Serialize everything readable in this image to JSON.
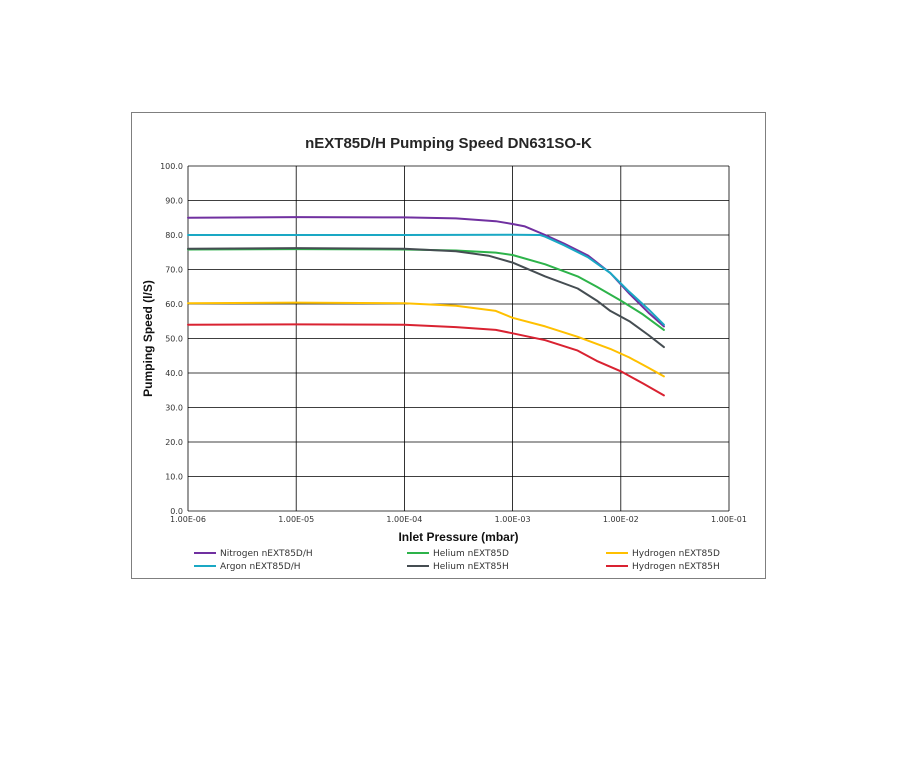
{
  "chart_data": {
    "type": "line",
    "title": "nEXT85D/H Pumping Speed DN631SO-K",
    "xlabel": "Inlet Pressure (mbar)",
    "ylabel": "Pumping Speed (l/S)",
    "x_scale": "log",
    "xlim": [
      1e-06,
      0.1
    ],
    "ylim": [
      0,
      100
    ],
    "grid": true,
    "legend_position": "bottom",
    "x_ticks": [
      "1.00E-06",
      "1.00E-05",
      "1.00E-04",
      "1.00E-03",
      "1.00E-02",
      "1.00E-01"
    ],
    "y_ticks": [
      "0.0",
      "10.0",
      "20.0",
      "30.0",
      "40.0",
      "50.0",
      "60.0",
      "70.0",
      "80.0",
      "90.0",
      "100.0"
    ],
    "series": [
      {
        "name": "Nitrogen nEXT85D/H",
        "color": "#7030a0",
        "points": [
          [
            1e-06,
            85
          ],
          [
            1e-05,
            85.2
          ],
          [
            0.0001,
            85.1
          ],
          [
            0.0003,
            84.8
          ],
          [
            0.0007,
            84
          ],
          [
            0.001,
            83.2
          ],
          [
            0.0013,
            82.5
          ],
          [
            0.002,
            80
          ],
          [
            0.003,
            77.5
          ],
          [
            0.005,
            74
          ],
          [
            0.008,
            69
          ],
          [
            0.012,
            63
          ],
          [
            0.018,
            57.5
          ],
          [
            0.025,
            53.5
          ]
        ]
      },
      {
        "name": "Argon nEXT85D/H",
        "color": "#1aa8c4",
        "points": [
          [
            1e-06,
            80
          ],
          [
            1e-05,
            80
          ],
          [
            0.0001,
            80
          ],
          [
            0.001,
            80.1
          ],
          [
            0.0018,
            80
          ],
          [
            0.002,
            79.5
          ],
          [
            0.003,
            77
          ],
          [
            0.005,
            73.5
          ],
          [
            0.008,
            69
          ],
          [
            0.012,
            63.5
          ],
          [
            0.018,
            58.5
          ],
          [
            0.025,
            54
          ]
        ]
      },
      {
        "name": "Helium nEXT85D",
        "color": "#2db34a",
        "points": [
          [
            1e-06,
            75.8
          ],
          [
            1e-05,
            75.9
          ],
          [
            0.0001,
            75.8
          ],
          [
            0.0003,
            75.5
          ],
          [
            0.0007,
            74.9
          ],
          [
            0.001,
            74.2
          ],
          [
            0.002,
            71.5
          ],
          [
            0.004,
            68
          ],
          [
            0.006,
            65
          ],
          [
            0.01,
            61
          ],
          [
            0.016,
            57
          ],
          [
            0.025,
            52.5
          ]
        ]
      },
      {
        "name": "Helium nEXT85H",
        "color": "#454d52",
        "points": [
          [
            1e-06,
            76
          ],
          [
            1e-05,
            76.2
          ],
          [
            0.0001,
            76
          ],
          [
            0.0003,
            75.3
          ],
          [
            0.0006,
            74
          ],
          [
            0.001,
            72
          ],
          [
            0.002,
            68
          ],
          [
            0.004,
            64.5
          ],
          [
            0.006,
            61
          ],
          [
            0.008,
            58
          ],
          [
            0.012,
            55
          ],
          [
            0.018,
            51
          ],
          [
            0.025,
            47.5
          ]
        ]
      },
      {
        "name": "Hydrogen nEXT85D",
        "color": "#ffc000",
        "points": [
          [
            1e-06,
            60.2
          ],
          [
            1e-05,
            60.4
          ],
          [
            0.0001,
            60.2
          ],
          [
            0.0003,
            59.5
          ],
          [
            0.0007,
            58
          ],
          [
            0.001,
            56
          ],
          [
            0.002,
            53.5
          ],
          [
            0.004,
            50.5
          ],
          [
            0.008,
            47
          ],
          [
            0.012,
            44.5
          ],
          [
            0.018,
            41.5
          ],
          [
            0.025,
            39
          ]
        ]
      },
      {
        "name": "Hydrogen nEXT85H",
        "color": "#d92231",
        "points": [
          [
            1e-06,
            54
          ],
          [
            1e-05,
            54.1
          ],
          [
            0.0001,
            54
          ],
          [
            0.0003,
            53.3
          ],
          [
            0.0007,
            52.5
          ],
          [
            0.001,
            51.5
          ],
          [
            0.002,
            49.5
          ],
          [
            0.004,
            46.5
          ],
          [
            0.006,
            43.5
          ],
          [
            0.01,
            40.5
          ],
          [
            0.016,
            37
          ],
          [
            0.025,
            33.5
          ]
        ]
      }
    ]
  }
}
